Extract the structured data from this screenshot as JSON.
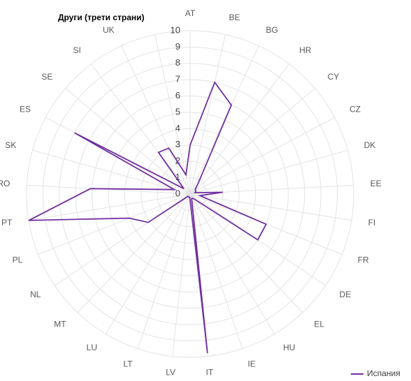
{
  "chart_data": {
    "type": "radar",
    "categories": [
      "AT",
      "BE",
      "BG",
      "HR",
      "CY",
      "CZ",
      "DK",
      "EE",
      "FI",
      "FR",
      "DE",
      "EL",
      "HU",
      "IE",
      "IT",
      "LV",
      "LT",
      "LU",
      "MT",
      "NL",
      "PL",
      "PT",
      "RO",
      "SK",
      "ES",
      "SE",
      "SI",
      "UK",
      "Други (трети страни)"
    ],
    "series": [
      {
        "name": "Испания",
        "color": "#7030a0",
        "values": [
          3,
          7,
          6,
          0.8,
          0.4,
          0.4,
          0.3,
          2,
          0.6,
          5,
          5,
          0.5,
          0.3,
          0.3,
          9.8,
          0.2,
          0.2,
          0.2,
          0.2,
          3.1,
          4,
          10,
          6.1,
          1,
          8,
          0.5,
          3.2,
          3.1,
          1.2
        ]
      }
    ],
    "ylim": [
      0,
      10
    ],
    "yticks": [
      0,
      1,
      2,
      3,
      4,
      5,
      6,
      7,
      8,
      9,
      10
    ],
    "grid": true,
    "legend": "bottom-right"
  }
}
